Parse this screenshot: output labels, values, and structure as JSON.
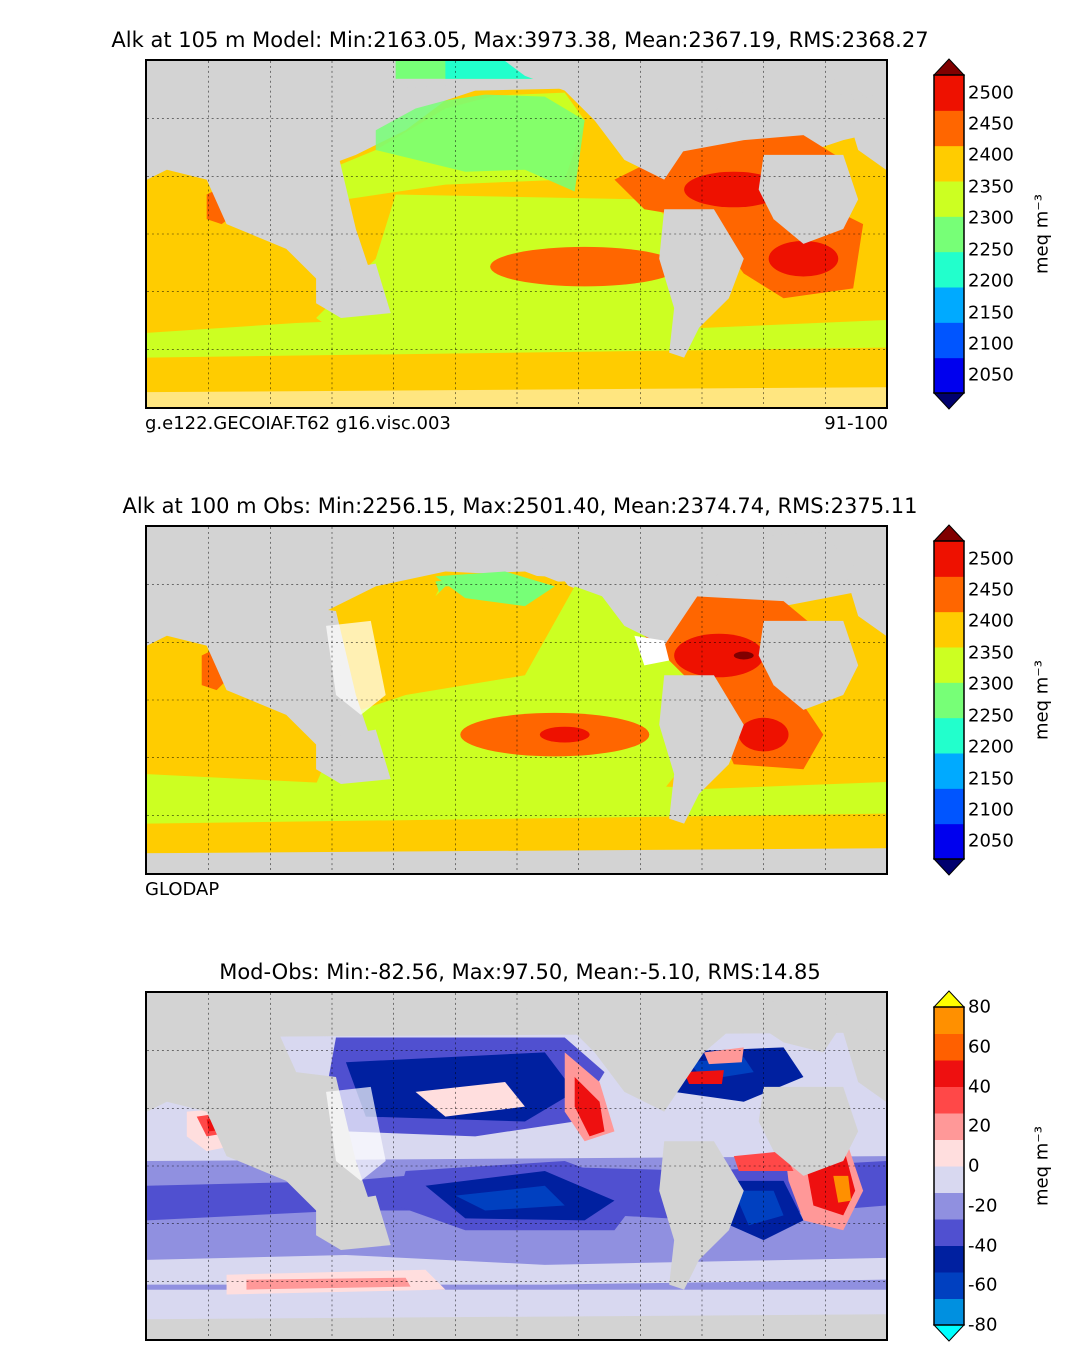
{
  "panels": [
    {
      "title": "Alk at 105 m Model: Min:2163.05, Max:3973.38, Mean:2367.19, RMS:2368.27",
      "footer_left": "g.e122.GECOIAF.T62 g16.visc.003",
      "footer_right": "91-100",
      "colorbar_unit": "meq m⁻³",
      "colorbar_ticks": [
        "2500",
        "2450",
        "2400",
        "2350",
        "2300",
        "2250",
        "2200",
        "2150",
        "2100",
        "2050"
      ]
    },
    {
      "title": "Alk at 100 m Obs: Min:2256.15, Max:2501.40, Mean:2374.74, RMS:2375.11",
      "footer_left": "GLODAP",
      "footer_right": "",
      "colorbar_unit": "meq m⁻³",
      "colorbar_ticks": [
        "2500",
        "2450",
        "2400",
        "2350",
        "2300",
        "2250",
        "2200",
        "2150",
        "2100",
        "2050"
      ]
    },
    {
      "title": "Mod-Obs: Min:-82.56, Max:97.50, Mean:-5.10, RMS:14.85",
      "footer_left": "",
      "footer_right": "",
      "colorbar_unit": "meq m⁻³",
      "colorbar_ticks": [
        "80",
        "60",
        "40",
        "20",
        "0",
        "-20",
        "-40",
        "-60",
        "-80"
      ]
    }
  ],
  "colors": {
    "land": "#d3d3d3",
    "alk_scale": [
      "#00006e",
      "#0000ee",
      "#0055ff",
      "#00aaff",
      "#22ffcc",
      "#77ff77",
      "#ccff22",
      "#ffcc00",
      "#ff6600",
      "#ee1100",
      "#800000"
    ],
    "diff_scale": [
      "#00ffff",
      "#0090e0",
      "#0040c0",
      "#0020a0",
      "#5050d0",
      "#9090e0",
      "#d8d8f0",
      "#ffdede",
      "#ff9898",
      "#ff4848",
      "#ee1010",
      "#ff6000",
      "#ff9000",
      "#ffff00"
    ]
  }
}
